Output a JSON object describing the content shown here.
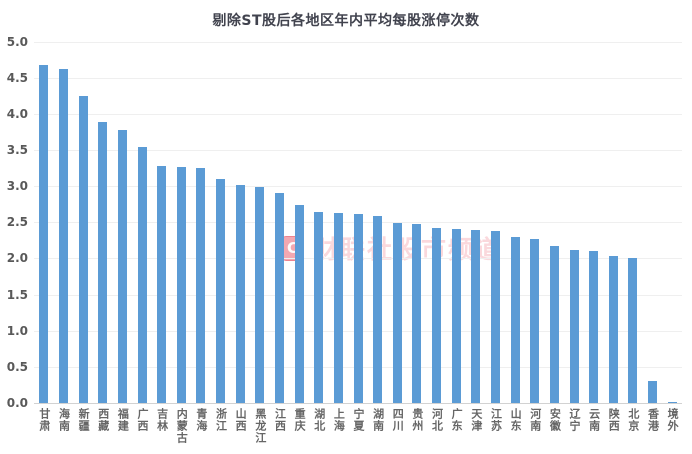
{
  "chart_data": {
    "type": "bar",
    "title": "剔除ST股后各地区年内平均每股涨停次数",
    "categories": [
      "甘肃",
      "海南",
      "新疆",
      "西藏",
      "福建",
      "广西",
      "吉林",
      "内蒙古",
      "青海",
      "浙江",
      "山西",
      "黑龙江",
      "江西",
      "重庆",
      "湖北",
      "上海",
      "宁夏",
      "湖南",
      "四川",
      "贵州",
      "河北",
      "广东",
      "天津",
      "江苏",
      "山东",
      "河南",
      "安徽",
      "辽宁",
      "云南",
      "陕西",
      "北京",
      "香港",
      "境外"
    ],
    "values": [
      4.68,
      4.62,
      4.24,
      3.88,
      3.77,
      3.54,
      3.28,
      3.27,
      3.25,
      3.1,
      3.01,
      2.99,
      2.9,
      2.74,
      2.64,
      2.63,
      2.62,
      2.59,
      2.49,
      2.48,
      2.42,
      2.41,
      2.39,
      2.38,
      2.29,
      2.27,
      2.17,
      2.11,
      2.1,
      2.04,
      2.01,
      0.3,
      0.02
    ],
    "xlabel": "",
    "ylabel": "",
    "ylim": [
      0,
      5
    ],
    "ytick_step": 0.5,
    "y_ticks": [
      "0.0",
      "0.5",
      "1.0",
      "1.5",
      "2.0",
      "2.5",
      "3.0",
      "3.5",
      "4.0",
      "4.5",
      "5.0"
    ],
    "grid": true,
    "legend": false,
    "bar_color": "#5B9BD5"
  },
  "watermark": {
    "logo_letter": "C",
    "text": "财联社股市频道",
    "accent_color": "#E53E51"
  },
  "colors": {
    "bar": "#5B9BD5",
    "title": "#41434E",
    "axis_label": "#595959",
    "gridline": "#EFEFEF",
    "axis_line": "#D2D2D2",
    "background": "#FFFFFF"
  }
}
